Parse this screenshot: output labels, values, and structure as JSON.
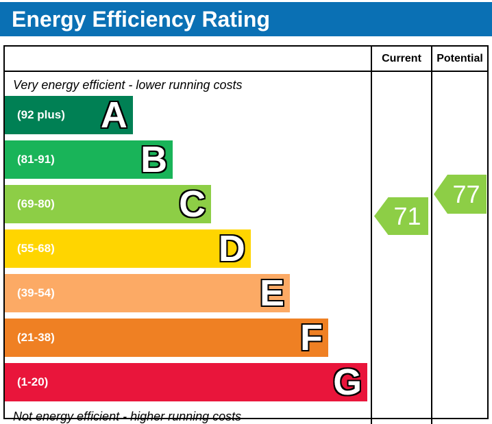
{
  "title": "Energy Efficiency Rating",
  "columns": {
    "current": "Current",
    "potential": "Potential"
  },
  "captions": {
    "top": "Very energy efficient - lower running costs",
    "bottom": "Not energy efficient - higher running costs"
  },
  "bands": [
    {
      "letter": "A",
      "range": "(92 plus)",
      "color": "#008054",
      "width_pct": 35.0
    },
    {
      "letter": "B",
      "range": "(81-91)",
      "color": "#19b459",
      "width_pct": 45.9
    },
    {
      "letter": "C",
      "range": "(69-80)",
      "color": "#8dce46",
      "width_pct": 56.4
    },
    {
      "letter": "D",
      "range": "(55-68)",
      "color": "#ffd500",
      "width_pct": 67.2
    },
    {
      "letter": "E",
      "range": "(39-54)",
      "color": "#fcaa65",
      "width_pct": 77.9
    },
    {
      "letter": "F",
      "range": "(21-38)",
      "color": "#ef8023",
      "width_pct": 88.4
    },
    {
      "letter": "G",
      "range": "(1-20)",
      "color": "#e9153b",
      "width_pct": 99.1
    }
  ],
  "ratings": {
    "current": {
      "value": "71",
      "band": "C",
      "color": "#8dce46"
    },
    "potential": {
      "value": "77",
      "band": "C",
      "color": "#8dce46"
    }
  },
  "theme": {
    "banner_blue": "#0a70b4",
    "border_black": "#000000"
  },
  "chart_data": {
    "type": "bar",
    "orientation": "horizontal",
    "title": "Energy Efficiency Rating",
    "categories": [
      "A",
      "B",
      "C",
      "D",
      "E",
      "F",
      "G"
    ],
    "band_ranges": [
      "92 plus",
      "81-91",
      "69-80",
      "55-68",
      "39-54",
      "21-38",
      "1-20"
    ],
    "band_colors": [
      "#008054",
      "#19b459",
      "#8dce46",
      "#ffd500",
      "#fcaa65",
      "#ef8023",
      "#e9153b"
    ],
    "columns": [
      "Current",
      "Potential"
    ],
    "series": [
      {
        "name": "Current",
        "value": 71,
        "band": "C"
      },
      {
        "name": "Potential",
        "value": 77,
        "band": "C"
      }
    ],
    "annotations": [
      "Very energy efficient - lower running costs",
      "Not energy efficient - higher running costs"
    ],
    "scale": [
      1,
      100
    ],
    "legend_position": "none",
    "grid": false
  }
}
